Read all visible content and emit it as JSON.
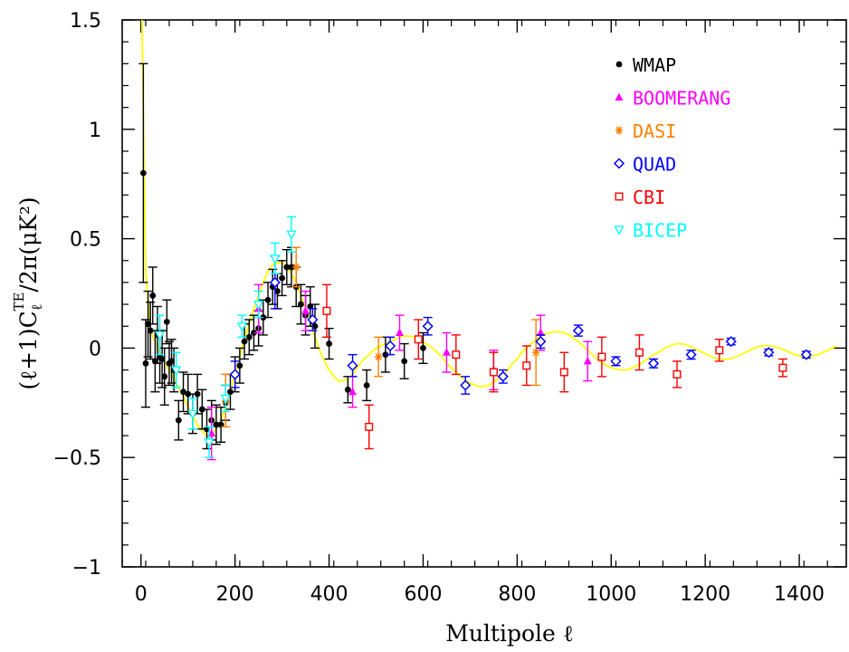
{
  "chart_data": {
    "type": "scatter",
    "title": "",
    "xlabel": "Multipole ℓ",
    "ylabel": "(ℓ+1)C",
    "ylabel_sub": "ℓ",
    "ylabel_sup": "TE",
    "ylabel_tail": "/2π(μK²)",
    "xlim": [
      -40,
      1500
    ],
    "ylim": [
      -1,
      1.5
    ],
    "x_ticks": [
      0,
      200,
      400,
      600,
      800,
      1000,
      1200,
      1400
    ],
    "y_ticks": [
      -1,
      -0.5,
      0,
      0.5,
      1,
      1.5
    ],
    "x_tick_labels": [
      "0",
      "200",
      "400",
      "600",
      "800",
      "1000",
      "1200",
      "1400"
    ],
    "y_tick_labels": [
      "−1",
      "−0.5",
      "0",
      "0.5",
      "1",
      "1.5"
    ],
    "grid": false,
    "legend_position": "top-right",
    "theory_color": "#ffff00",
    "theory_curve": {
      "x": [
        2,
        10,
        20,
        30,
        40,
        50,
        60,
        70,
        80,
        90,
        100,
        110,
        120,
        130,
        140,
        150,
        160,
        170,
        180,
        190,
        200,
        210,
        220,
        230,
        240,
        250,
        260,
        270,
        280,
        290,
        300,
        310,
        320,
        330,
        340,
        350,
        360,
        370,
        380,
        390,
        400,
        410,
        420,
        430,
        440,
        450,
        460,
        470,
        480,
        490,
        500,
        510,
        520,
        530,
        540,
        550,
        560,
        570,
        580,
        590,
        600,
        610,
        620,
        630,
        640,
        650,
        660,
        670,
        680,
        690,
        700,
        710,
        720,
        730,
        740,
        750,
        760,
        770,
        780,
        790,
        800,
        810,
        820,
        830,
        840,
        850,
        860,
        870,
        880,
        890,
        900,
        910,
        920,
        930,
        940,
        950,
        960,
        970,
        980,
        990,
        1000,
        1010,
        1020,
        1030,
        1040,
        1050,
        1060,
        1070,
        1080,
        1090,
        1100,
        1110,
        1120,
        1130,
        1140,
        1150,
        1160,
        1170,
        1180,
        1190,
        1200,
        1210,
        1220,
        1230,
        1240,
        1250,
        1260,
        1270,
        1280,
        1290,
        1300,
        1310,
        1320,
        1330,
        1340,
        1350,
        1360,
        1370,
        1380,
        1390,
        1400,
        1410,
        1420,
        1430,
        1440,
        1450,
        1460,
        1470,
        1480
      ],
      "y": [
        1.5,
        0.35,
        0.08,
        0.03,
        -0.02,
        -0.06,
        -0.1,
        -0.14,
        -0.18,
        -0.22,
        -0.27,
        -0.31,
        -0.35,
        -0.38,
        -0.4,
        -0.4,
        -0.37,
        -0.33,
        -0.27,
        -0.2,
        -0.12,
        -0.04,
        0.04,
        0.11,
        0.18,
        0.24,
        0.3,
        0.35,
        0.38,
        0.39,
        0.39,
        0.37,
        0.34,
        0.3,
        0.24,
        0.18,
        0.12,
        0.05,
        -0.01,
        -0.06,
        -0.1,
        -0.13,
        -0.15,
        -0.15,
        -0.14,
        -0.12,
        -0.09,
        -0.06,
        -0.04,
        -0.02,
        0.0,
        0.01,
        0.02,
        0.03,
        0.04,
        0.05,
        0.055,
        0.055,
        0.05,
        0.04,
        0.03,
        0.015,
        0.0,
        -0.02,
        -0.04,
        -0.07,
        -0.09,
        -0.11,
        -0.13,
        -0.15,
        -0.16,
        -0.17,
        -0.175,
        -0.175,
        -0.17,
        -0.155,
        -0.14,
        -0.12,
        -0.1,
        -0.07,
        -0.05,
        -0.02,
        0.0,
        0.02,
        0.04,
        0.055,
        0.065,
        0.07,
        0.075,
        0.075,
        0.07,
        0.06,
        0.045,
        0.03,
        0.01,
        -0.01,
        -0.03,
        -0.05,
        -0.065,
        -0.08,
        -0.09,
        -0.095,
        -0.1,
        -0.1,
        -0.095,
        -0.085,
        -0.075,
        -0.06,
        -0.045,
        -0.03,
        -0.02,
        -0.005,
        0.005,
        0.015,
        0.02,
        0.02,
        0.015,
        0.005,
        -0.005,
        -0.015,
        -0.025,
        -0.035,
        -0.045,
        -0.05,
        -0.05,
        -0.05,
        -0.045,
        -0.035,
        -0.025,
        -0.015,
        -0.005,
        0.005,
        0.01,
        0.012,
        0.01,
        0.005,
        -0.002,
        -0.01,
        -0.02,
        -0.03,
        -0.035,
        -0.04,
        -0.04,
        -0.035,
        -0.03,
        -0.02,
        -0.01,
        0.0,
        0.01
      ]
    },
    "series": [
      {
        "name": "WMAP",
        "color": "#000000",
        "marker": "dot",
        "x": [
          5,
          10,
          15,
          20,
          25,
          30,
          35,
          40,
          45,
          50,
          55,
          60,
          65,
          70,
          80,
          90,
          100,
          110,
          120,
          130,
          140,
          150,
          160,
          170,
          180,
          190,
          200,
          210,
          220,
          230,
          240,
          250,
          260,
          270,
          280,
          290,
          300,
          310,
          320,
          330,
          340,
          350,
          360,
          370,
          400,
          440,
          480,
          520,
          560,
          600
        ],
        "y": [
          0.8,
          -0.07,
          0.11,
          0.08,
          0.24,
          -0.06,
          0.06,
          -0.04,
          -0.05,
          -0.13,
          0.12,
          -0.07,
          -0.06,
          -0.1,
          -0.33,
          -0.2,
          -0.21,
          -0.3,
          -0.21,
          -0.28,
          -0.37,
          -0.33,
          -0.35,
          -0.35,
          -0.25,
          -0.2,
          -0.12,
          -0.08,
          0.03,
          0.05,
          0.07,
          0.09,
          0.14,
          0.22,
          0.28,
          0.26,
          0.32,
          0.37,
          0.37,
          0.28,
          0.2,
          0.15,
          0.19,
          0.1,
          0.02,
          -0.19,
          -0.17,
          -0.03,
          -0.06,
          0.0
        ],
        "err": [
          0.5,
          0.2,
          0.15,
          0.13,
          0.13,
          0.14,
          0.13,
          0.12,
          0.13,
          0.13,
          0.1,
          0.1,
          0.1,
          0.1,
          0.09,
          0.09,
          0.09,
          0.09,
          0.09,
          0.09,
          0.09,
          0.09,
          0.09,
          0.08,
          0.08,
          0.08,
          0.08,
          0.08,
          0.08,
          0.08,
          0.08,
          0.08,
          0.08,
          0.08,
          0.08,
          0.08,
          0.08,
          0.08,
          0.09,
          0.09,
          0.09,
          0.09,
          0.09,
          0.1,
          0.07,
          0.06,
          0.07,
          0.08,
          0.08,
          0.07
        ]
      },
      {
        "name": "BOOMERANG",
        "color": "#ff00ff",
        "marker": "triangle-up",
        "x": [
          150,
          250,
          350,
          450,
          550,
          650,
          750,
          850,
          950
        ],
        "y": [
          -0.39,
          0.18,
          0.17,
          -0.2,
          0.07,
          -0.02,
          -0.1,
          0.07,
          -0.06
        ],
        "err": [
          0.12,
          0.11,
          0.09,
          0.07,
          0.08,
          0.09,
          0.09,
          0.08,
          0.09
        ]
      },
      {
        "name": "DASI",
        "color": "#ff8000",
        "marker": "asterisk",
        "x": [
          180,
          330,
          505,
          840
        ],
        "y": [
          -0.24,
          0.37,
          -0.04,
          -0.02
        ],
        "err": [
          0.12,
          0.09,
          0.09,
          0.15
        ]
      },
      {
        "name": "QUAD",
        "color": "#0000ff",
        "marker": "diamond",
        "x": [
          200,
          285,
          365,
          450,
          530,
          610,
          690,
          770,
          850,
          930,
          1010,
          1090,
          1170,
          1255,
          1335,
          1415
        ],
        "y": [
          -0.12,
          0.3,
          0.13,
          -0.08,
          0.01,
          0.1,
          -0.17,
          -0.13,
          0.03,
          0.08,
          -0.06,
          -0.07,
          -0.03,
          0.03,
          -0.02,
          -0.03
        ],
        "err": [
          0.06,
          0.12,
          0.05,
          0.05,
          0.04,
          0.04,
          0.04,
          0.03,
          0.03,
          0.025,
          0.02,
          0.02,
          0.02,
          0.015,
          0.015,
          0.015
        ]
      },
      {
        "name": "CBI",
        "color": "#ff0000",
        "marker": "square",
        "x": [
          395,
          485,
          590,
          670,
          750,
          820,
          900,
          980,
          1060,
          1140,
          1230,
          1365
        ],
        "y": [
          0.17,
          -0.36,
          0.04,
          -0.03,
          -0.11,
          -0.08,
          -0.11,
          -0.04,
          -0.02,
          -0.12,
          -0.01,
          -0.09
        ],
        "err": [
          0.12,
          0.1,
          0.09,
          0.09,
          0.09,
          0.09,
          0.09,
          0.09,
          0.08,
          0.06,
          0.05,
          0.04
        ]
      },
      {
        "name": "BICEP",
        "color": "#00ffff",
        "marker": "triangle-down",
        "x": [
          40,
          75,
          110,
          145,
          180,
          215,
          250,
          285,
          320
        ],
        "y": [
          0.06,
          -0.1,
          -0.3,
          -0.43,
          -0.23,
          0.1,
          0.2,
          0.41,
          0.52
        ],
        "err": [
          0.09,
          0.08,
          0.07,
          0.07,
          0.06,
          0.05,
          0.06,
          0.07,
          0.08
        ]
      }
    ]
  }
}
